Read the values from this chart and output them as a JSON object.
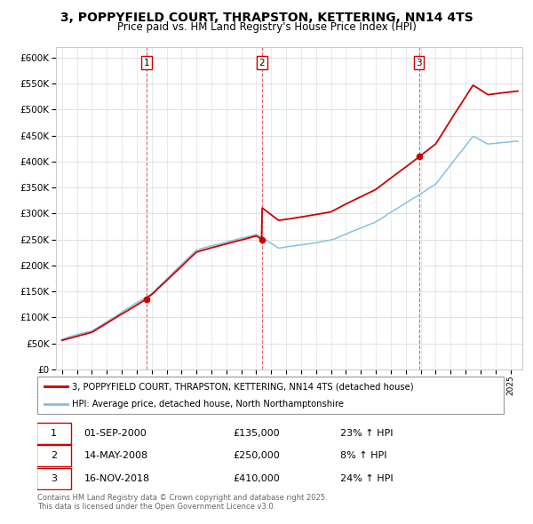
{
  "title": "3, POPPYFIELD COURT, THRAPSTON, KETTERING, NN14 4TS",
  "subtitle": "Price paid vs. HM Land Registry's House Price Index (HPI)",
  "transactions": [
    {
      "num": 1,
      "date_str": "01-SEP-2000",
      "price": 135000,
      "pct": "23%",
      "year_float": 2000.67
    },
    {
      "num": 2,
      "date_str": "14-MAY-2008",
      "price": 250000,
      "pct": "8%",
      "year_float": 2008.37
    },
    {
      "num": 3,
      "date_str": "16-NOV-2018",
      "price": 410000,
      "pct": "24%",
      "year_float": 2018.88
    }
  ],
  "legend_line1": "3, POPPYFIELD COURT, THRAPSTON, KETTERING, NN14 4TS (detached house)",
  "legend_line2": "HPI: Average price, detached house, North Northamptonshire",
  "footer1": "Contains HM Land Registry data © Crown copyright and database right 2025.",
  "footer2": "This data is licensed under the Open Government Licence v3.0.",
  "price_color": "#cc0000",
  "hpi_color": "#7fbfdf",
  "bg_color": "#ffffff",
  "grid_color": "#e0e0e0",
  "ylim": [
    0,
    620000
  ],
  "yticks": [
    0,
    50000,
    100000,
    150000,
    200000,
    250000,
    300000,
    350000,
    400000,
    450000,
    500000,
    550000,
    600000
  ],
  "xlim_start": 1994.6,
  "xlim_end": 2025.8,
  "xticks": [
    1995,
    1996,
    1997,
    1998,
    1999,
    2000,
    2001,
    2002,
    2003,
    2004,
    2005,
    2006,
    2007,
    2008,
    2009,
    2010,
    2011,
    2012,
    2013,
    2014,
    2015,
    2016,
    2017,
    2018,
    2019,
    2020,
    2021,
    2022,
    2023,
    2024,
    2025
  ]
}
